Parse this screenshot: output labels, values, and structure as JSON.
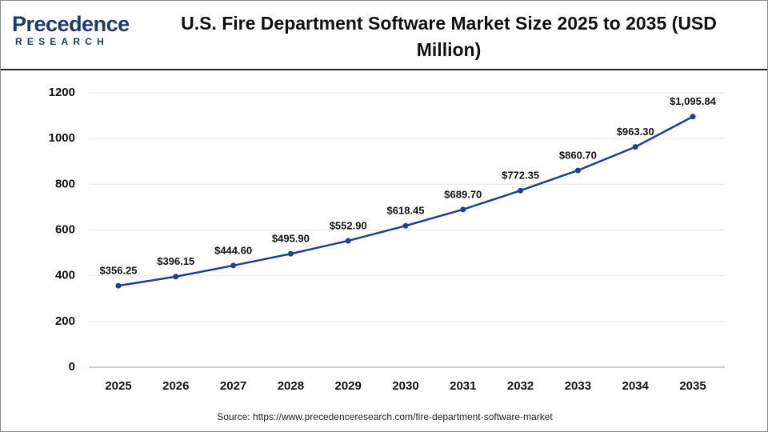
{
  "logo": {
    "name": "Precedence",
    "tagline": "RESEARCH"
  },
  "chart_data": {
    "type": "line",
    "title": "U.S. Fire Department Software Market Size 2025 to 2035 (USD Million)",
    "categories": [
      "2025",
      "2026",
      "2027",
      "2028",
      "2029",
      "2030",
      "2031",
      "2032",
      "2033",
      "2034",
      "2035"
    ],
    "series": [
      {
        "name": "Market Size",
        "color": "#1f3f94",
        "values": [
          356.25,
          396.15,
          444.6,
          495.9,
          552.9,
          618.45,
          689.7,
          772.35,
          860.7,
          963.3,
          1095.84
        ],
        "value_labels": [
          "$356.25",
          "$396.15",
          "$444.60",
          "$495.90",
          "$552.90",
          "$618.45",
          "$689.70",
          "$772.35",
          "$860.70",
          "$963.30",
          "$1,095.84"
        ]
      }
    ],
    "ylim": [
      0,
      1200
    ],
    "yticks": [
      0,
      200,
      400,
      600,
      800,
      1000,
      1200
    ],
    "grid": true,
    "source": "Source: https://www.precedenceresearch.com/fire-department-software-market"
  }
}
